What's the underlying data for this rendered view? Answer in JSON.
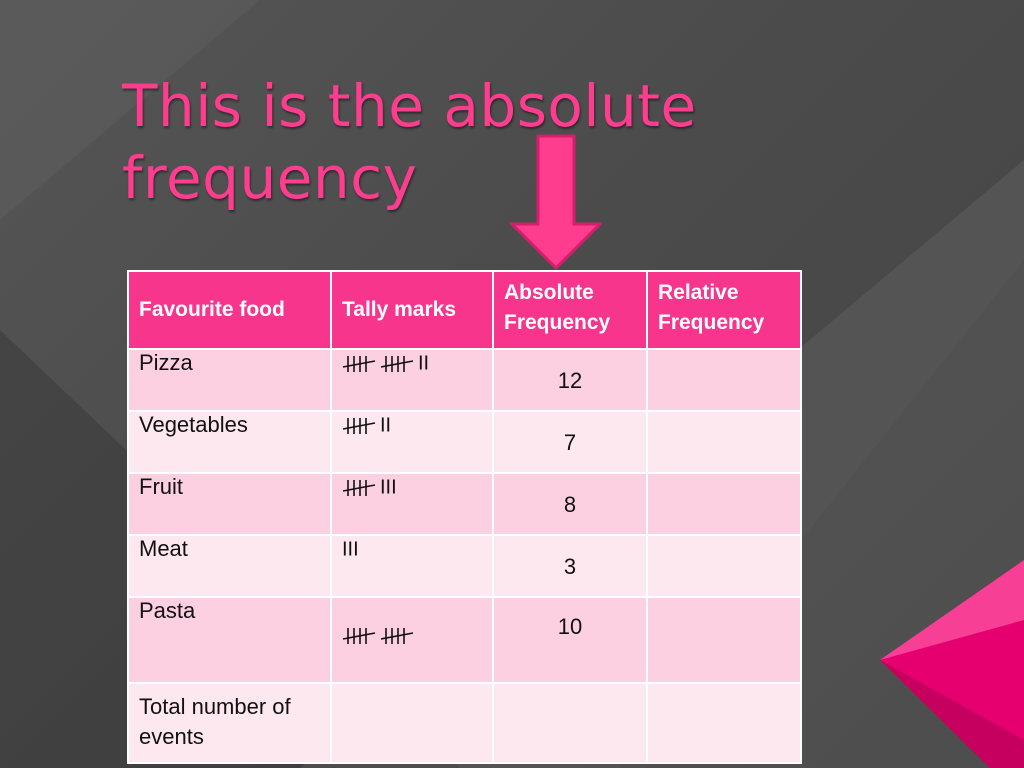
{
  "slide": {
    "title_line1": "This is the absolute",
    "title_line2": "frequency"
  },
  "table": {
    "headers": [
      "Favourite food",
      "Tally marks",
      "Absolute Frequency",
      "Relative Frequency"
    ],
    "rows": [
      {
        "food": "Pizza",
        "tally_groups": 2,
        "tally_extra": "II",
        "absolute": "12",
        "relative": ""
      },
      {
        "food": "Vegetables",
        "tally_groups": 1,
        "tally_extra": "II",
        "absolute": "7",
        "relative": ""
      },
      {
        "food": "Fruit",
        "tally_groups": 1,
        "tally_extra": "III",
        "absolute": "8",
        "relative": ""
      },
      {
        "food": "Meat",
        "tally_groups": 0,
        "tally_extra": "III",
        "absolute": "3",
        "relative": ""
      },
      {
        "food": "Pasta",
        "tally_groups": 2,
        "tally_extra": "",
        "absolute": "10",
        "relative": ""
      },
      {
        "food": "Total number of events",
        "tally_groups": 0,
        "tally_extra": "",
        "absolute": "",
        "relative": ""
      }
    ]
  },
  "colors": {
    "accent": "#f8358d",
    "title": "#ff3d8f",
    "row_dark": "#fdd0e1",
    "row_light": "#fde8ef"
  }
}
